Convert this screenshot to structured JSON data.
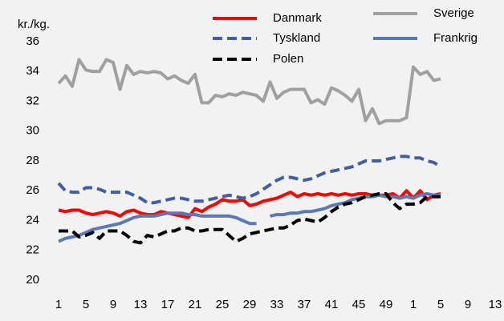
{
  "chart_data": {
    "type": "line",
    "y_label": "kr./kg.",
    "categories": [
      "1",
      null,
      null,
      null,
      "5",
      null,
      null,
      null,
      "9",
      null,
      null,
      null,
      "13",
      null,
      null,
      null,
      "17",
      null,
      null,
      null,
      "21",
      null,
      null,
      null,
      "25",
      null,
      null,
      null,
      "29",
      null,
      null,
      null,
      "33",
      null,
      null,
      null,
      "37",
      null,
      null,
      null,
      "41",
      null,
      null,
      null,
      "45",
      null,
      null,
      null,
      "49",
      null,
      null,
      null,
      "1",
      null,
      null,
      null,
      "5",
      null,
      null,
      null,
      "9",
      null,
      null,
      null,
      "13"
    ],
    "ylim": [
      20,
      36
    ],
    "yticks": [
      20,
      22,
      24,
      26,
      28,
      30,
      32,
      34,
      36
    ],
    "grid": false,
    "series": [
      {
        "name": "Danmark",
        "color": "#ff0000",
        "dashed": false,
        "values": [
          24.7,
          24.6,
          24.7,
          24.7,
          24.5,
          24.4,
          24.5,
          24.6,
          24.5,
          24.3,
          24.6,
          24.7,
          24.5,
          24.4,
          24.4,
          24.6,
          24.5,
          24.4,
          24.3,
          24.2,
          24.8,
          24.6,
          24.9,
          25.1,
          25.4,
          25.3,
          25.3,
          25.4,
          25.0,
          25.1,
          25.3,
          25.4,
          25.5,
          25.7,
          25.9,
          25.6,
          25.8,
          25.7,
          25.8,
          25.7,
          25.8,
          25.7,
          25.8,
          25.7,
          25.8,
          25.8,
          25.7,
          25.7,
          25.7,
          25.8,
          25.5,
          26.0,
          25.5,
          26.0,
          25.4,
          25.7,
          25.8,
          null,
          null,
          null,
          null,
          null,
          null,
          null,
          null
        ]
      },
      {
        "name": "Sverige",
        "color": "#a0a0a0",
        "dashed": false,
        "values": [
          33.2,
          33.7,
          33.0,
          34.8,
          34.1,
          34.0,
          34.0,
          34.8,
          34.6,
          32.8,
          34.4,
          33.8,
          34.0,
          33.9,
          34.0,
          33.9,
          33.5,
          33.7,
          33.4,
          33.2,
          33.8,
          31.9,
          31.9,
          32.4,
          32.3,
          32.5,
          32.4,
          32.6,
          32.5,
          32.4,
          32.0,
          33.3,
          32.2,
          32.6,
          32.8,
          32.8,
          32.8,
          31.9,
          32.1,
          31.8,
          32.9,
          32.7,
          32.4,
          32.0,
          32.8,
          30.7,
          31.5,
          30.5,
          30.7,
          30.7,
          30.7,
          30.9,
          34.3,
          33.8,
          34.0,
          33.4,
          33.5,
          null,
          null,
          null,
          null,
          null,
          null,
          null,
          null
        ]
      },
      {
        "name": "Tyskland",
        "color": "#3f5fa8",
        "dashed": true,
        "values": [
          26.5,
          26.0,
          25.9,
          25.9,
          26.2,
          26.2,
          26.1,
          25.9,
          25.9,
          25.9,
          25.9,
          25.7,
          25.5,
          25.2,
          25.2,
          25.3,
          25.4,
          25.5,
          25.5,
          25.4,
          25.3,
          25.3,
          25.4,
          25.5,
          25.6,
          25.7,
          25.6,
          25.5,
          25.6,
          25.8,
          26.1,
          26.4,
          26.7,
          26.9,
          26.9,
          26.8,
          26.7,
          26.8,
          27.0,
          27.2,
          27.3,
          27.4,
          27.5,
          27.6,
          27.8,
          28.0,
          28.0,
          28.0,
          28.1,
          28.2,
          28.3,
          28.3,
          28.2,
          28.2,
          28.0,
          27.9,
          27.6,
          null,
          null,
          null,
          null,
          null,
          null,
          null,
          null
        ]
      },
      {
        "name": "Frankrig",
        "color": "#5a7ab5",
        "dashed": false,
        "values": [
          22.6,
          22.8,
          22.9,
          23.0,
          23.2,
          23.4,
          23.5,
          23.6,
          23.7,
          23.8,
          24.0,
          24.2,
          24.3,
          24.3,
          24.3,
          24.4,
          24.5,
          24.5,
          24.5,
          24.4,
          24.4,
          24.3,
          24.3,
          24.3,
          24.3,
          24.3,
          24.2,
          24.0,
          23.8,
          23.8,
          null,
          24.3,
          24.4,
          24.4,
          24.5,
          24.5,
          24.6,
          24.6,
          24.7,
          24.8,
          25.0,
          25.1,
          25.2,
          25.4,
          25.5,
          25.6,
          25.6,
          25.7,
          25.6,
          25.6,
          25.5,
          25.6,
          25.5,
          25.7,
          25.8,
          25.7,
          25.7,
          null,
          null,
          null,
          null,
          null,
          null,
          null,
          null
        ]
      },
      {
        "name": "Polen",
        "color": "#000000",
        "dashed": true,
        "values": [
          23.3,
          23.3,
          23.3,
          22.9,
          23.0,
          23.2,
          22.8,
          23.3,
          23.3,
          23.3,
          23.0,
          22.6,
          22.5,
          23.0,
          22.9,
          23.1,
          23.3,
          23.3,
          23.5,
          23.5,
          23.3,
          23.3,
          23.4,
          23.4,
          23.4,
          23.0,
          22.6,
          22.8,
          23.1,
          23.2,
          23.3,
          23.4,
          23.5,
          23.5,
          23.7,
          24.0,
          24.1,
          24.0,
          23.9,
          24.2,
          24.6,
          24.9,
          25.1,
          25.2,
          25.4,
          25.6,
          25.7,
          25.8,
          25.8,
          25.2,
          24.8,
          25.1,
          25.1,
          25.2,
          25.6,
          25.6,
          25.6,
          null,
          null,
          null,
          null,
          null,
          null,
          null,
          null
        ]
      }
    ]
  }
}
